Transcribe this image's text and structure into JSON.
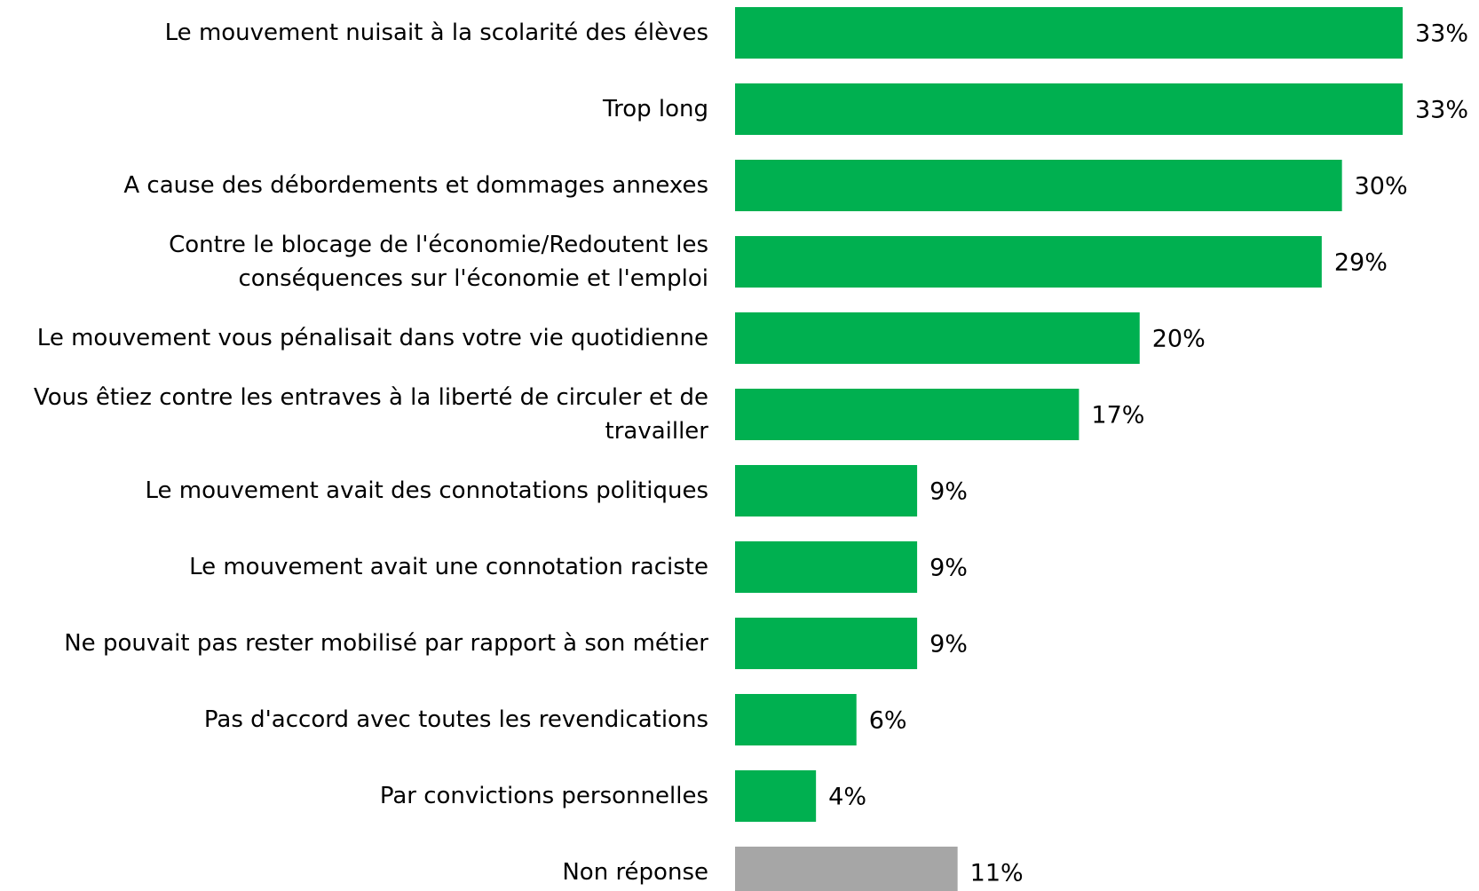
{
  "chart_data": {
    "type": "bar",
    "orientation": "horizontal",
    "categories": [
      "Le mouvement nuisait à la scolarité des élèves",
      "Trop long",
      "A cause des débordements et dommages annexes",
      "Contre le blocage de l'économie/Redoutent les conséquences sur l'économie et l'emploi",
      "Le mouvement vous pénalisait dans votre vie quotidienne",
      "Vous êtiez contre les entraves à la liberté de circuler et de travailler",
      "Le mouvement avait des connotations politiques",
      "Le mouvement avait une connotation raciste",
      "Ne pouvait pas rester mobilisé par rapport à son métier",
      "Pas d'accord avec toutes les revendications",
      "Par convictions personnelles",
      "Non réponse"
    ],
    "values": [
      33,
      33,
      30,
      29,
      20,
      17,
      9,
      9,
      9,
      6,
      4,
      11
    ],
    "value_labels": [
      "33%",
      "33%",
      "30%",
      "29%",
      "20%",
      "17%",
      "9%",
      "9%",
      "9%",
      "6%",
      "4%",
      "11%"
    ],
    "colors": [
      "#00b050",
      "#00b050",
      "#00b050",
      "#00b050",
      "#00b050",
      "#00b050",
      "#00b050",
      "#00b050",
      "#00b050",
      "#00b050",
      "#00b050",
      "#a6a6a6"
    ]
  }
}
